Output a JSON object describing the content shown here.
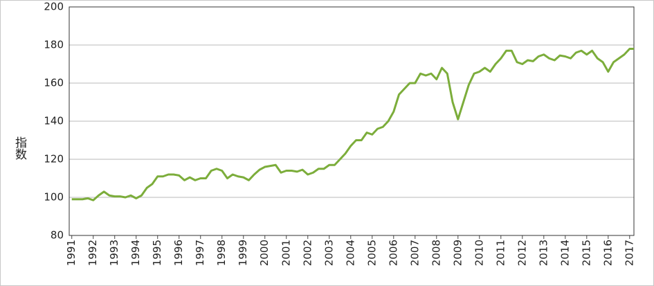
{
  "chart_data": {
    "type": "line",
    "y_label": "指数",
    "x": [
      1991,
      1991.25,
      1991.5,
      1991.75,
      1992,
      1992.25,
      1992.5,
      1992.75,
      1993,
      1993.25,
      1993.5,
      1993.75,
      1994,
      1994.25,
      1994.5,
      1994.75,
      1995,
      1995.25,
      1995.5,
      1995.75,
      1996,
      1996.25,
      1996.5,
      1996.75,
      1997,
      1997.25,
      1997.5,
      1997.75,
      1998,
      1998.25,
      1998.5,
      1998.75,
      1999,
      1999.25,
      1999.5,
      1999.75,
      2000,
      2000.25,
      2000.5,
      2000.75,
      2001,
      2001.25,
      2001.5,
      2001.75,
      2002,
      2002.25,
      2002.5,
      2002.75,
      2003,
      2003.25,
      2003.5,
      2003.75,
      2004,
      2004.25,
      2004.5,
      2004.75,
      2005,
      2005.25,
      2005.5,
      2005.75,
      2006,
      2006.25,
      2006.5,
      2006.75,
      2007,
      2007.25,
      2007.5,
      2007.75,
      2008,
      2008.25,
      2008.5,
      2008.75,
      2009,
      2009.25,
      2009.5,
      2009.75,
      2010,
      2010.25,
      2010.5,
      2010.75,
      2011,
      2011.25,
      2011.5,
      2011.75,
      2012,
      2012.25,
      2012.5,
      2012.75,
      2013,
      2013.25,
      2013.5,
      2013.75,
      2014,
      2014.25,
      2014.5,
      2014.75,
      2015,
      2015.25,
      2015.5,
      2015.75,
      2016,
      2016.25,
      2016.5,
      2016.75,
      2017,
      2017.2
    ],
    "series": [
      {
        "color": "#7cad3b",
        "values": [
          99,
          99,
          99,
          99.5,
          98.5,
          101,
          103,
          101,
          100.5,
          100.5,
          100,
          101,
          99.5,
          101,
          105,
          107,
          111,
          111,
          112,
          112,
          111.5,
          109,
          110.5,
          109,
          110,
          110,
          114,
          115,
          114,
          110,
          112,
          111,
          110.5,
          109,
          112,
          114.5,
          116,
          116.5,
          117,
          113,
          114,
          114,
          113.5,
          114.5,
          112,
          113,
          115,
          115,
          117,
          117,
          120,
          123,
          127,
          130,
          130,
          134,
          133,
          136,
          137,
          140,
          145,
          154,
          157,
          160,
          160,
          165,
          164,
          165,
          162,
          168,
          165,
          150,
          141,
          150,
          159,
          165,
          166,
          168,
          166,
          170,
          173,
          177,
          177,
          171,
          170,
          172,
          171.5,
          174,
          175,
          173,
          172,
          174.5,
          174,
          173,
          176,
          177,
          175,
          177,
          173,
          171,
          166,
          171,
          173,
          175,
          178,
          178
        ]
      }
    ],
    "xlim": [
      1990.88,
      2017.2
    ],
    "xticks": [
      1991,
      1992,
      1993,
      1994,
      1995,
      1996,
      1997,
      1998,
      1999,
      2000,
      2001,
      2002,
      2003,
      2004,
      2005,
      2006,
      2007,
      2008,
      2009,
      2010,
      2011,
      2012,
      2013,
      2014,
      2015,
      2016,
      2017
    ],
    "ylim": [
      80,
      200
    ],
    "yticks": [
      80,
      100,
      120,
      140,
      160,
      180,
      200
    ],
    "grid": true
  }
}
